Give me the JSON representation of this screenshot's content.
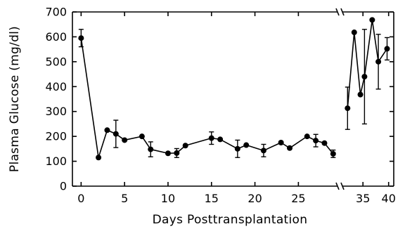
{
  "chart_data": {
    "type": "line",
    "xlabel": "Days Posttransplantation",
    "ylabel": "Plasma Glucose (mg/dl)",
    "ylim": [
      0,
      700
    ],
    "y_ticks": [
      0,
      100,
      200,
      300,
      400,
      500,
      600,
      700
    ],
    "x_axis_break": true,
    "x_segments": [
      {
        "xlim": [
          -1,
          29.5
        ],
        "ticks": [
          0,
          5,
          10,
          15,
          20,
          25
        ]
      },
      {
        "xlim": [
          31,
          41
        ],
        "ticks": [
          35,
          40
        ]
      }
    ],
    "series": [
      {
        "segment": 0,
        "points": [
          {
            "x": 0,
            "y": 595,
            "err": 35
          },
          {
            "x": 2,
            "y": 115
          },
          {
            "x": 3,
            "y": 225
          },
          {
            "x": 4,
            "y": 210,
            "err": 55
          },
          {
            "x": 5,
            "y": 185
          },
          {
            "x": 7,
            "y": 200
          },
          {
            "x": 8,
            "y": 148,
            "err": 30
          },
          {
            "x": 10,
            "y": 132
          },
          {
            "x": 11,
            "y": 133,
            "err": 18
          },
          {
            "x": 12,
            "y": 163
          },
          {
            "x": 15,
            "y": 193,
            "err": 25
          },
          {
            "x": 16,
            "y": 188
          },
          {
            "x": 18,
            "y": 150,
            "err": 35
          },
          {
            "x": 19,
            "y": 165
          },
          {
            "x": 21,
            "y": 143,
            "err": 25
          },
          {
            "x": 23,
            "y": 175
          },
          {
            "x": 24,
            "y": 153
          },
          {
            "x": 26,
            "y": 200
          },
          {
            "x": 27,
            "y": 183,
            "err": 25
          },
          {
            "x": 28,
            "y": 173
          },
          {
            "x": 29,
            "y": 130,
            "err": 15
          }
        ]
      },
      {
        "segment": 1,
        "points": [
          {
            "x": 32,
            "y": 313,
            "err": 85
          },
          {
            "x": 33.3,
            "y": 618
          },
          {
            "x": 34.5,
            "y": 368
          },
          {
            "x": 35.3,
            "y": 440,
            "err": 190
          },
          {
            "x": 36.8,
            "y": 668
          },
          {
            "x": 38,
            "y": 500,
            "err": 110
          },
          {
            "x": 39.7,
            "y": 552,
            "err": 45
          }
        ]
      }
    ]
  }
}
